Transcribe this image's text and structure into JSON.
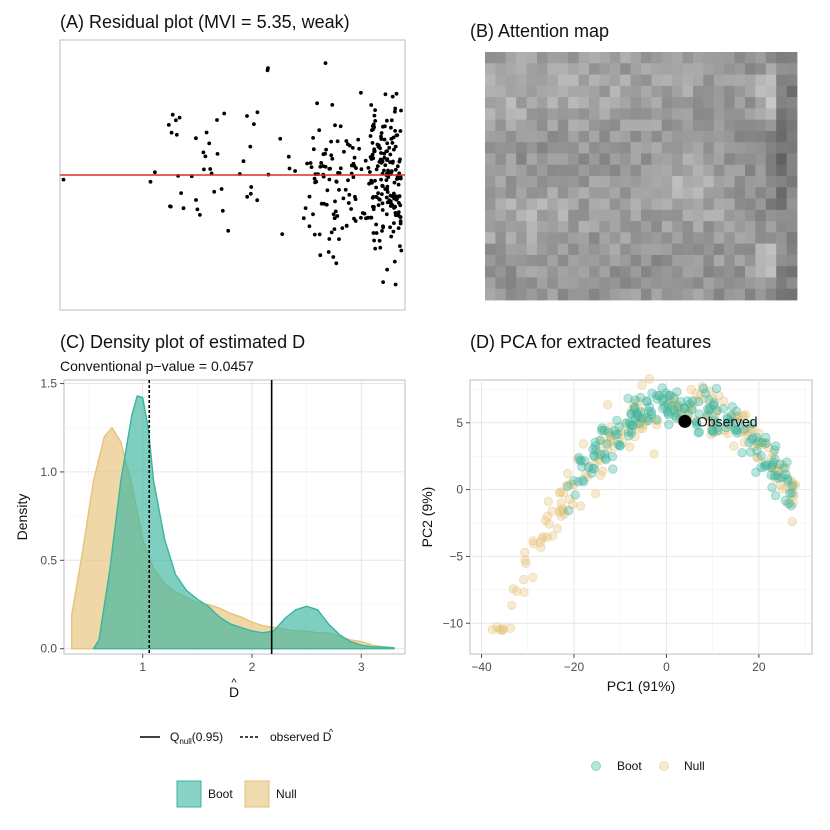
{
  "colors": {
    "boot": "#3ab5a0",
    "null": "#e6c27a",
    "ref_line": "#d73027",
    "point": "#000000"
  },
  "chart_data": [
    {
      "id": "A",
      "type": "scatter",
      "title": "(A) Residual plot (MVI = 5.35, weak)",
      "xlabel": "",
      "ylabel": "",
      "xlim": [
        0,
        10
      ],
      "ylim": [
        -4.4,
        4.4
      ],
      "reference_line": {
        "y": 0,
        "color": "#d73027"
      },
      "grid": false,
      "ticks": false
    },
    {
      "id": "B",
      "type": "heatmap",
      "title": "(B) Attention map",
      "rows": 22,
      "cols": 30,
      "colorscale": "grayscale"
    },
    {
      "id": "C",
      "type": "area",
      "title": "(C) Density plot of estimated D",
      "subtitle": "Conventional p−value = 0.0457",
      "xlabel": "D",
      "xlabel_hat": "^",
      "ylabel": "Density",
      "xlim": [
        0.28,
        3.4
      ],
      "ylim": [
        -0.03,
        1.52
      ],
      "xticks": [
        1,
        2,
        3
      ],
      "xtick_labels": [
        "1",
        "2",
        "3"
      ],
      "yticks": [
        0,
        0.5,
        1,
        1.5
      ],
      "ytick_labels": [
        "0.0",
        "0.5",
        "1.0",
        "1.5"
      ],
      "series": [
        {
          "name": "Null",
          "x": [
            0.35,
            0.45,
            0.55,
            0.65,
            0.72,
            0.8,
            0.9,
            1.0,
            1.1,
            1.2,
            1.3,
            1.4,
            1.5,
            1.6,
            1.7,
            1.8,
            1.9,
            2.0,
            2.1,
            2.2,
            2.3,
            2.4,
            2.5,
            2.6,
            2.7,
            2.8,
            2.9,
            3.0,
            3.1,
            3.2,
            3.3
          ],
          "values": [
            0.19,
            0.55,
            0.95,
            1.2,
            1.25,
            1.17,
            0.93,
            0.62,
            0.45,
            0.37,
            0.32,
            0.29,
            0.26,
            0.25,
            0.23,
            0.2,
            0.18,
            0.15,
            0.13,
            0.12,
            0.11,
            0.1,
            0.1,
            0.09,
            0.09,
            0.07,
            0.05,
            0.04,
            0.02,
            0.01,
            0.005
          ]
        },
        {
          "name": "Boot",
          "x": [
            0.55,
            0.6,
            0.7,
            0.8,
            0.9,
            0.95,
            1.0,
            1.05,
            1.1,
            1.2,
            1.3,
            1.4,
            1.5,
            1.6,
            1.7,
            1.8,
            1.9,
            2.0,
            2.1,
            2.2,
            2.3,
            2.4,
            2.5,
            2.6,
            2.7,
            2.8,
            2.9,
            3.0,
            3.1,
            3.2,
            3.3
          ],
          "values": [
            0.0,
            0.05,
            0.45,
            0.95,
            1.32,
            1.43,
            1.42,
            1.25,
            0.95,
            0.62,
            0.42,
            0.33,
            0.28,
            0.24,
            0.18,
            0.14,
            0.12,
            0.1,
            0.09,
            0.1,
            0.17,
            0.22,
            0.24,
            0.22,
            0.14,
            0.08,
            0.04,
            0.02,
            0.01,
            0.01,
            0.005
          ]
        }
      ],
      "vlines": [
        {
          "x": 2.18,
          "style": "solid",
          "label": "Q",
          "label_sub": "null",
          "label_suffix": "(0.95)"
        },
        {
          "x": 1.06,
          "style": "dotted",
          "label": "observed D"
        }
      ],
      "legend_fill": [
        "Boot",
        "Null"
      ],
      "legend_position": "bottom"
    },
    {
      "id": "D",
      "type": "scatter",
      "title": "(D) PCA for extracted features",
      "xlabel": "PC1 (91%)",
      "ylabel": "PC2 (9%)",
      "xlim": [
        -42.5,
        31.5
      ],
      "ylim": [
        -12.3,
        8.2
      ],
      "xticks": [
        -40,
        -20,
        0,
        20
      ],
      "xtick_labels": [
        "−40",
        "−20",
        "0",
        "20"
      ],
      "yticks": [
        -10,
        -5,
        0,
        5
      ],
      "ytick_labels": [
        "−10",
        "−5",
        "0",
        "5"
      ],
      "observed": {
        "x": 4,
        "y": 5.1,
        "label": "Observed"
      },
      "legend": [
        "Boot",
        "Null"
      ],
      "legend_position": "bottom"
    }
  ]
}
